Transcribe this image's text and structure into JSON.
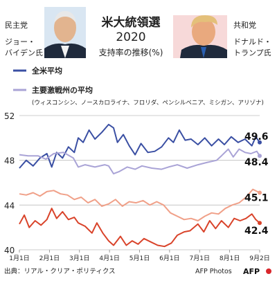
{
  "header": {
    "title_line1": "米大統領選",
    "title_line2": "2020",
    "subtitle": "支持率の推移(%)"
  },
  "candidates": {
    "left": {
      "party": "民主党",
      "name_line1": "ジョー・",
      "name_line2": "バイデン氏"
    },
    "right": {
      "party": "共和党",
      "name_line1": "ドナルド・",
      "name_line2": "トランプ氏"
    }
  },
  "legend": {
    "national": "全米平均",
    "battleground": "主要激戦州の平均",
    "battleground_states": "(ウィスコンシン、ノースカロライナ、フロリダ、ペンシルベニア、ミシガン、アリゾナ)"
  },
  "colors": {
    "biden_national": "#3a4fa3",
    "biden_battleground": "#a9a3d6",
    "trump_national": "#d9432a",
    "trump_battleground": "#f0a088",
    "grid": "#bdbdbd",
    "left_photo_bg": "#d9e6f2",
    "right_photo_bg": "#f7d9d9"
  },
  "footer": {
    "source": "出典：リアル・クリア・ポリティクス",
    "credit": "AFP Photos",
    "logo": "AFP"
  },
  "chart_data": {
    "type": "line",
    "x_labels": [
      "1月1日",
      "2月1日",
      "3月1日",
      "4月1日",
      "5月1日",
      "6月1日",
      "7月1日",
      "8月1日",
      "9月2日"
    ],
    "x_start": "2020-01-01",
    "x_end": "2020-09-02",
    "y_ticks": [
      40,
      44,
      48,
      52
    ],
    "ylim": [
      40,
      52
    ],
    "grid": true,
    "legend_position": "top-left",
    "series": [
      {
        "name": "全米平均",
        "color_key": "biden_national",
        "final_label": "49.6",
        "points": [
          [
            "2020-01-01",
            47.3
          ],
          [
            "2020-01-08",
            48.0
          ],
          [
            "2020-01-15",
            47.5
          ],
          [
            "2020-01-22",
            48.2
          ],
          [
            "2020-01-29",
            48.6
          ],
          [
            "2020-02-03",
            47.4
          ],
          [
            "2020-02-08",
            48.7
          ],
          [
            "2020-02-14",
            48.2
          ],
          [
            "2020-02-20",
            49.2
          ],
          [
            "2020-02-26",
            48.7
          ],
          [
            "2020-03-01",
            50.0
          ],
          [
            "2020-03-06",
            49.6
          ],
          [
            "2020-03-12",
            50.7
          ],
          [
            "2020-03-18",
            49.9
          ],
          [
            "2020-03-25",
            50.5
          ],
          [
            "2020-04-01",
            51.2
          ],
          [
            "2020-04-06",
            50.9
          ],
          [
            "2020-04-10",
            49.6
          ],
          [
            "2020-04-16",
            50.3
          ],
          [
            "2020-04-22",
            49.3
          ],
          [
            "2020-04-28",
            48.5
          ],
          [
            "2020-05-04",
            49.5
          ],
          [
            "2020-05-11",
            48.7
          ],
          [
            "2020-05-18",
            48.8
          ],
          [
            "2020-05-25",
            49.2
          ],
          [
            "2020-06-01",
            50.0
          ],
          [
            "2020-06-06",
            49.6
          ],
          [
            "2020-06-12",
            50.7
          ],
          [
            "2020-06-18",
            49.8
          ],
          [
            "2020-06-24",
            49.9
          ],
          [
            "2020-07-01",
            49.4
          ],
          [
            "2020-07-08",
            50.0
          ],
          [
            "2020-07-15",
            49.3
          ],
          [
            "2020-07-22",
            49.9
          ],
          [
            "2020-07-28",
            49.4
          ],
          [
            "2020-08-04",
            50.1
          ],
          [
            "2020-08-11",
            49.6
          ],
          [
            "2020-08-18",
            49.9
          ],
          [
            "2020-08-25",
            49.3
          ],
          [
            "2020-08-29",
            50.1
          ],
          [
            "2020-09-02",
            49.6
          ]
        ]
      },
      {
        "name": "主要激戦州の平均",
        "color_key": "biden_battleground",
        "final_label": "48.4",
        "points": [
          [
            "2020-01-01",
            48.5
          ],
          [
            "2020-01-10",
            48.4
          ],
          [
            "2020-01-20",
            48.4
          ],
          [
            "2020-01-28",
            48.1
          ],
          [
            "2020-02-05",
            48.6
          ],
          [
            "2020-02-15",
            48.7
          ],
          [
            "2020-02-25",
            48.2
          ],
          [
            "2020-03-01",
            47.4
          ],
          [
            "2020-03-08",
            47.6
          ],
          [
            "2020-03-18",
            47.4
          ],
          [
            "2020-03-28",
            47.6
          ],
          [
            "2020-04-01",
            47.5
          ],
          [
            "2020-04-06",
            46.8
          ],
          [
            "2020-04-12",
            47.0
          ],
          [
            "2020-04-20",
            47.4
          ],
          [
            "2020-04-28",
            47.2
          ],
          [
            "2020-05-05",
            47.5
          ],
          [
            "2020-05-15",
            47.3
          ],
          [
            "2020-05-25",
            47.2
          ],
          [
            "2020-06-01",
            47.4
          ],
          [
            "2020-06-10",
            47.6
          ],
          [
            "2020-06-20",
            47.3
          ],
          [
            "2020-07-01",
            47.6
          ],
          [
            "2020-07-10",
            47.8
          ],
          [
            "2020-07-20",
            48.0
          ],
          [
            "2020-07-25",
            48.4
          ],
          [
            "2020-08-01",
            49.0
          ],
          [
            "2020-08-06",
            48.3
          ],
          [
            "2020-08-12",
            49.0
          ],
          [
            "2020-08-18",
            48.7
          ],
          [
            "2020-08-24",
            48.6
          ],
          [
            "2020-08-30",
            48.8
          ],
          [
            "2020-09-02",
            48.4
          ]
        ]
      },
      {
        "name": "",
        "color_key": "trump_battleground",
        "final_label": "45.1",
        "points": [
          [
            "2020-01-01",
            45.0
          ],
          [
            "2020-01-08",
            44.9
          ],
          [
            "2020-01-15",
            45.1
          ],
          [
            "2020-01-22",
            44.8
          ],
          [
            "2020-01-29",
            45.2
          ],
          [
            "2020-02-05",
            45.3
          ],
          [
            "2020-02-12",
            45.0
          ],
          [
            "2020-02-19",
            44.9
          ],
          [
            "2020-02-26",
            44.5
          ],
          [
            "2020-03-04",
            44.7
          ],
          [
            "2020-03-11",
            44.2
          ],
          [
            "2020-03-18",
            44.5
          ],
          [
            "2020-03-25",
            43.9
          ],
          [
            "2020-04-01",
            44.1
          ],
          [
            "2020-04-08",
            44.5
          ],
          [
            "2020-04-15",
            43.9
          ],
          [
            "2020-04-22",
            44.3
          ],
          [
            "2020-04-29",
            44.2
          ],
          [
            "2020-05-06",
            44.4
          ],
          [
            "2020-05-13",
            44.0
          ],
          [
            "2020-05-20",
            44.3
          ],
          [
            "2020-05-27",
            44.0
          ],
          [
            "2020-06-03",
            43.3
          ],
          [
            "2020-06-10",
            43.0
          ],
          [
            "2020-06-17",
            42.7
          ],
          [
            "2020-06-24",
            42.8
          ],
          [
            "2020-07-01",
            42.6
          ],
          [
            "2020-07-08",
            43.0
          ],
          [
            "2020-07-15",
            43.3
          ],
          [
            "2020-07-22",
            43.2
          ],
          [
            "2020-07-29",
            43.7
          ],
          [
            "2020-08-05",
            44.0
          ],
          [
            "2020-08-12",
            44.2
          ],
          [
            "2020-08-19",
            44.7
          ],
          [
            "2020-08-26",
            45.4
          ],
          [
            "2020-09-02",
            45.1
          ]
        ]
      },
      {
        "name": "",
        "color_key": "trump_national",
        "final_label": "42.4",
        "points": [
          [
            "2020-01-01",
            42.3
          ],
          [
            "2020-01-06",
            43.1
          ],
          [
            "2020-01-11",
            42.0
          ],
          [
            "2020-01-17",
            42.6
          ],
          [
            "2020-01-23",
            42.2
          ],
          [
            "2020-01-29",
            42.7
          ],
          [
            "2020-02-03",
            43.7
          ],
          [
            "2020-02-08",
            42.8
          ],
          [
            "2020-02-14",
            43.4
          ],
          [
            "2020-02-20",
            42.7
          ],
          [
            "2020-02-26",
            42.9
          ],
          [
            "2020-03-01",
            42.4
          ],
          [
            "2020-03-08",
            42.1
          ],
          [
            "2020-03-15",
            41.5
          ],
          [
            "2020-03-20",
            42.4
          ],
          [
            "2020-03-26",
            41.5
          ],
          [
            "2020-04-01",
            40.8
          ],
          [
            "2020-04-06",
            40.4
          ],
          [
            "2020-04-13",
            41.2
          ],
          [
            "2020-04-19",
            40.4
          ],
          [
            "2020-04-25",
            40.8
          ],
          [
            "2020-05-01",
            40.5
          ],
          [
            "2020-05-07",
            41.0
          ],
          [
            "2020-05-14",
            40.7
          ],
          [
            "2020-05-21",
            40.4
          ],
          [
            "2020-05-28",
            40.3
          ],
          [
            "2020-06-04",
            40.6
          ],
          [
            "2020-06-10",
            41.3
          ],
          [
            "2020-06-17",
            41.6
          ],
          [
            "2020-06-23",
            41.7
          ],
          [
            "2020-07-01",
            42.3
          ],
          [
            "2020-07-07",
            41.6
          ],
          [
            "2020-07-13",
            42.6
          ],
          [
            "2020-07-19",
            41.9
          ],
          [
            "2020-07-25",
            42.6
          ],
          [
            "2020-08-01",
            42.0
          ],
          [
            "2020-08-07",
            42.8
          ],
          [
            "2020-08-13",
            42.6
          ],
          [
            "2020-08-19",
            42.8
          ],
          [
            "2020-08-25",
            43.2
          ],
          [
            "2020-08-29",
            42.7
          ],
          [
            "2020-09-02",
            42.4
          ]
        ]
      }
    ]
  }
}
